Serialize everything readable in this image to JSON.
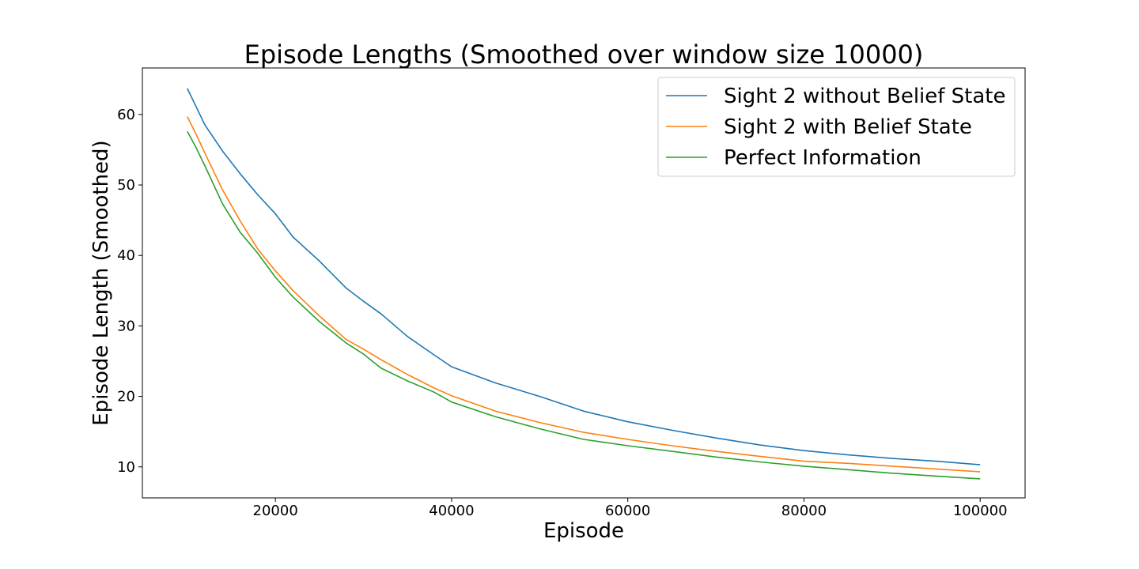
{
  "chart_data": {
    "type": "line",
    "title": "Episode Lengths (Smoothed over window size 10000)",
    "xlabel": "Episode",
    "ylabel": "Episode Length (Smoothed)",
    "xlim": [
      4900,
      105100
    ],
    "ylim": [
      5.6,
      66.6
    ],
    "xticks": [
      20000,
      40000,
      60000,
      80000,
      100000
    ],
    "yticks": [
      10,
      20,
      30,
      40,
      50,
      60
    ],
    "grid": false,
    "legend_position": "top-right",
    "series": [
      {
        "name": "Sight 2 without Belief State",
        "color": "#1f77b4",
        "x": [
          10000,
          12000,
          14000,
          16000,
          18000,
          20000,
          22000,
          25000,
          28000,
          30000,
          32000,
          35000,
          38000,
          40000,
          45000,
          50000,
          55000,
          60000,
          65000,
          70000,
          75000,
          80000,
          85000,
          90000,
          95000,
          100000
        ],
        "y": [
          63.7,
          58.5,
          54.8,
          51.6,
          48.6,
          45.9,
          42.6,
          39.2,
          35.4,
          33.5,
          31.7,
          28.5,
          25.9,
          24.2,
          21.9,
          20.0,
          17.9,
          16.4,
          15.2,
          14.1,
          13.1,
          12.3,
          11.7,
          11.2,
          10.8,
          10.3
        ]
      },
      {
        "name": "Sight 2 with Belief State",
        "color": "#ff7f0e",
        "x": [
          10000,
          11000,
          12000,
          14000,
          16000,
          18000,
          20000,
          22000,
          25000,
          28000,
          30000,
          32000,
          35000,
          38000,
          40000,
          45000,
          50000,
          55000,
          60000,
          65000,
          70000,
          75000,
          80000,
          85000,
          90000,
          95000,
          100000
        ],
        "y": [
          59.7,
          57.2,
          54.5,
          49.3,
          44.9,
          40.9,
          37.8,
          35.0,
          31.4,
          28.1,
          26.7,
          25.2,
          23.1,
          21.2,
          20.1,
          17.9,
          16.3,
          14.9,
          13.9,
          13.0,
          12.2,
          11.5,
          10.8,
          10.5,
          10.1,
          9.7,
          9.3
        ]
      },
      {
        "name": "Perfect Information",
        "color": "#2ca02c",
        "x": [
          10000,
          11000,
          12000,
          14000,
          16000,
          18000,
          20000,
          22000,
          25000,
          28000,
          30000,
          32000,
          35000,
          38000,
          40000,
          45000,
          50000,
          55000,
          60000,
          65000,
          70000,
          75000,
          80000,
          85000,
          90000,
          95000,
          100000
        ],
        "y": [
          57.6,
          55.3,
          52.7,
          47.3,
          43.3,
          40.3,
          36.9,
          34.1,
          30.6,
          27.6,
          26.0,
          24.0,
          22.2,
          20.6,
          19.2,
          17.1,
          15.4,
          13.9,
          13.0,
          12.2,
          11.4,
          10.7,
          10.1,
          9.6,
          9.1,
          8.7,
          8.3
        ]
      }
    ]
  }
}
